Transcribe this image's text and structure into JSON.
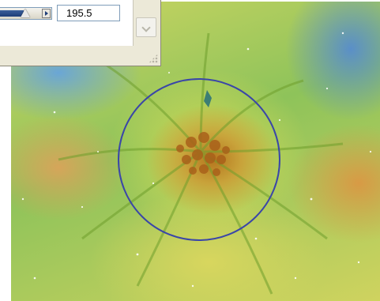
{
  "dialog": {
    "value_field": "195.5",
    "slider_level_fraction": 0.62
  },
  "canvas": {
    "selection_shape": "circle",
    "selection_color": "#3a46a8"
  },
  "icons": {
    "slider_end": "right-arrow-icon",
    "scroll": "chevron-down-icon",
    "grip": "resize-grip-icon"
  }
}
